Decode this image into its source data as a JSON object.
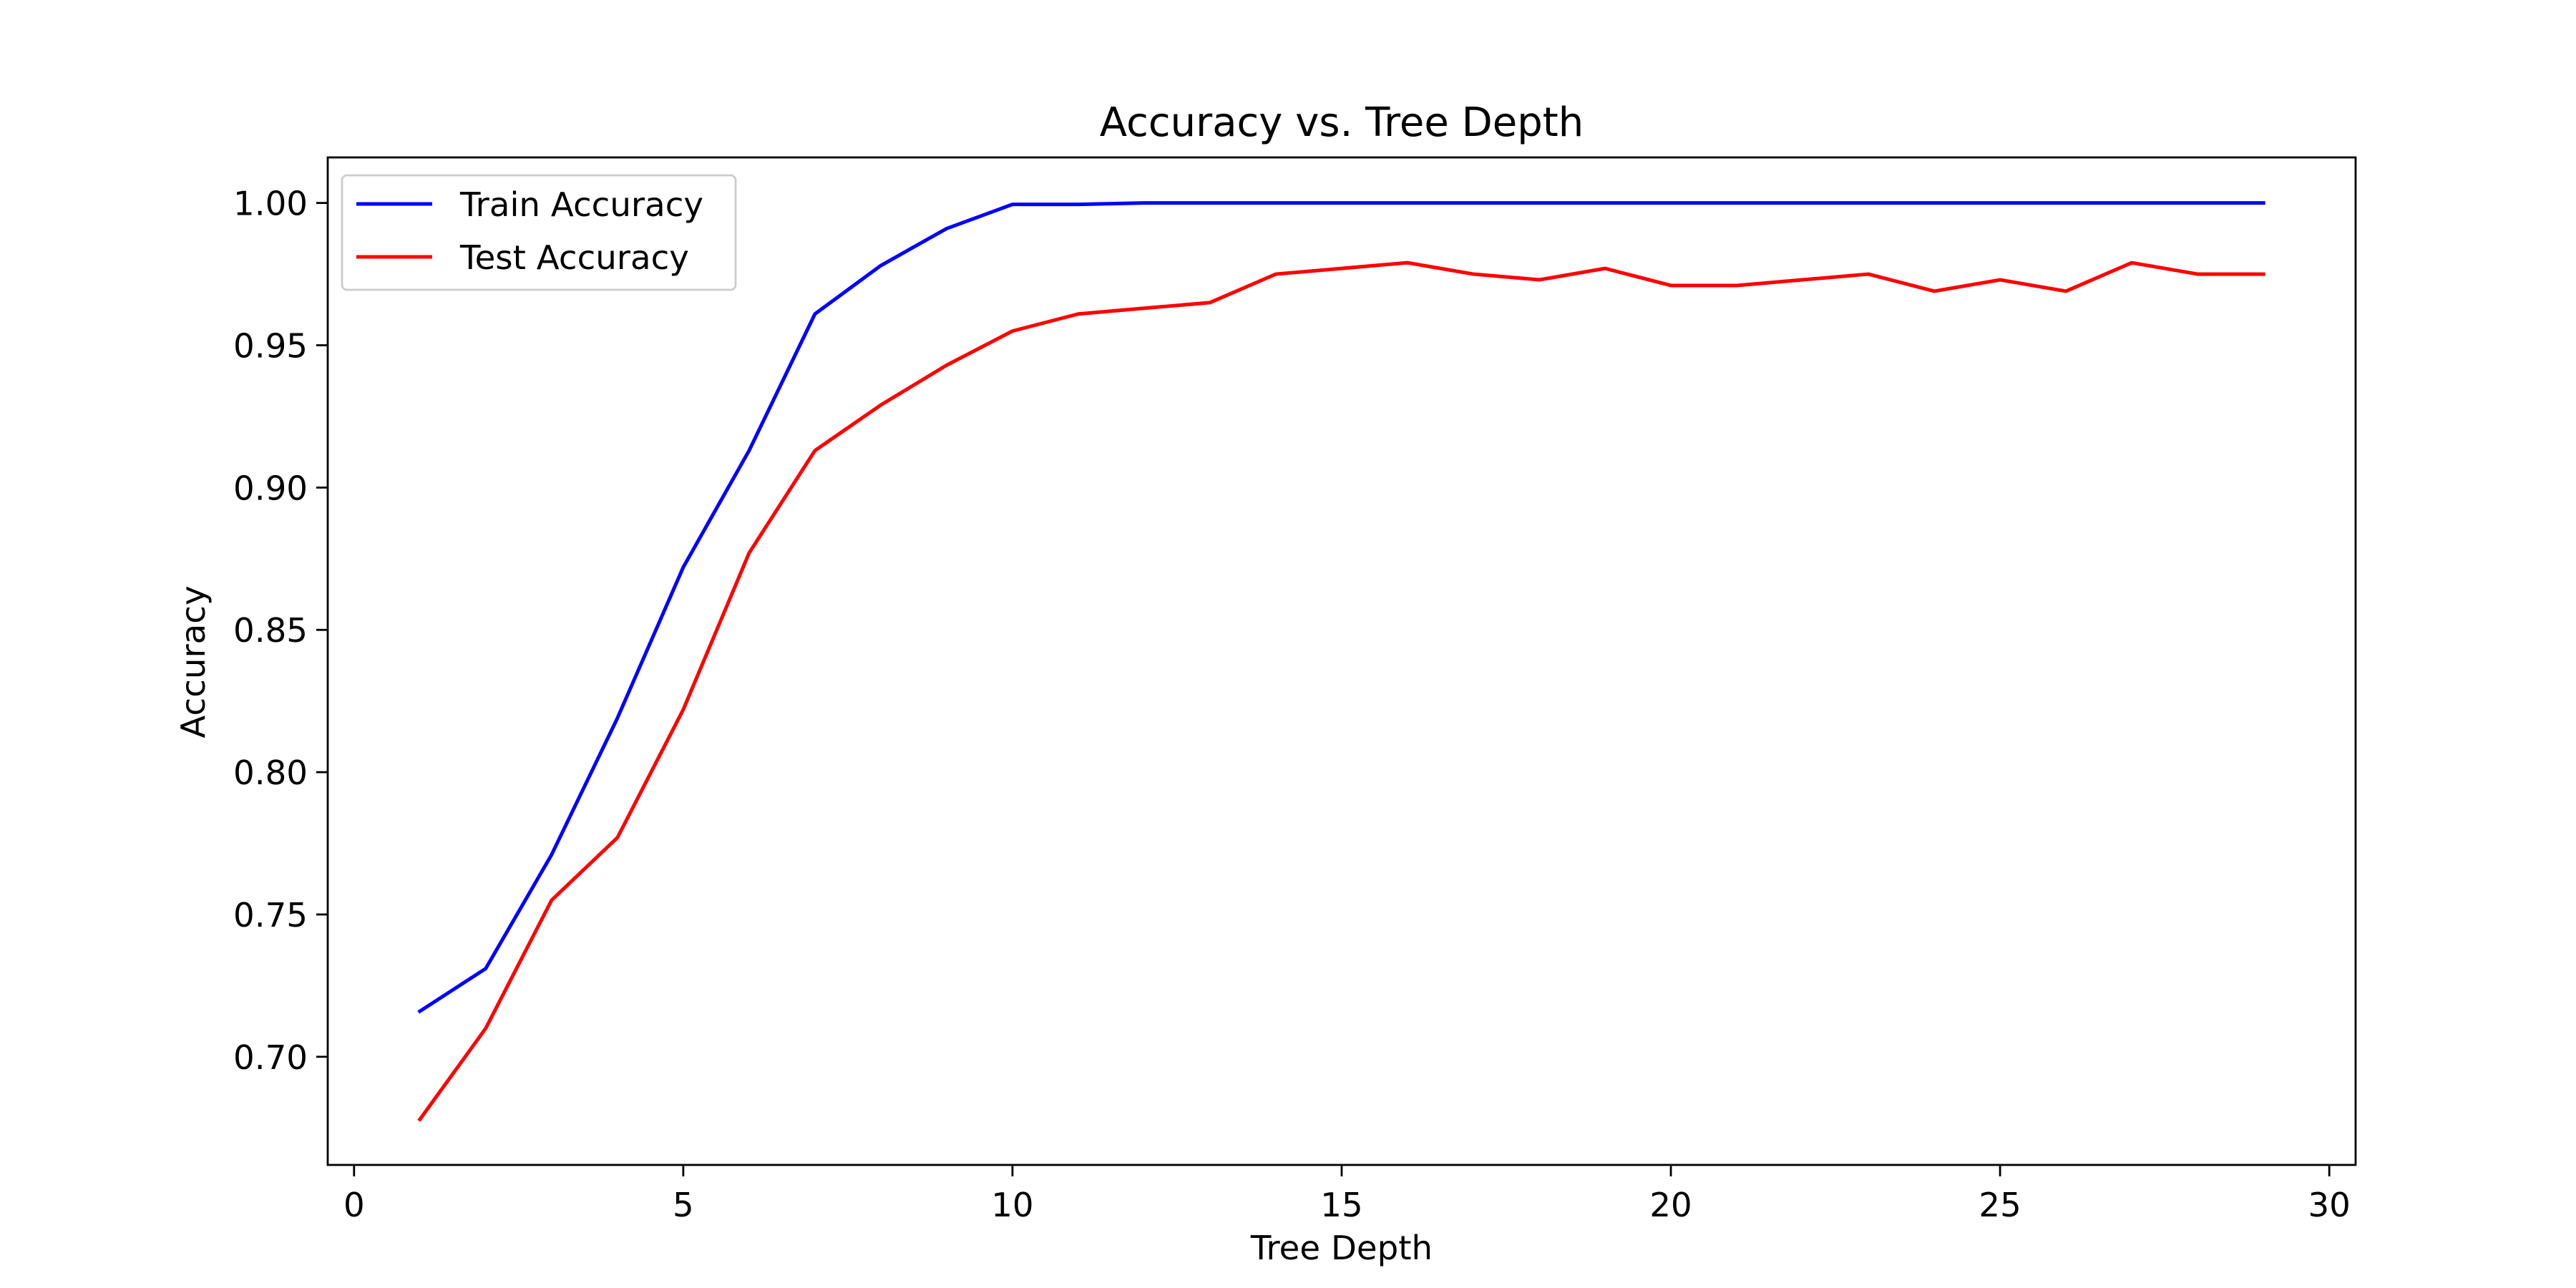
{
  "chart_data": {
    "type": "line",
    "title": "Accuracy vs. Tree Depth",
    "xlabel": "Tree Depth",
    "ylabel": "Accuracy",
    "xlim": [
      -0.4,
      30.4
    ],
    "ylim": [
      0.662,
      1.016
    ],
    "xticks": [
      0,
      5,
      10,
      15,
      20,
      25,
      30
    ],
    "xtick_labels": [
      "0",
      "5",
      "10",
      "15",
      "20",
      "25",
      "30"
    ],
    "yticks": [
      0.7,
      0.75,
      0.8,
      0.85,
      0.9,
      0.95,
      1.0
    ],
    "ytick_labels": [
      "0.70",
      "0.75",
      "0.80",
      "0.85",
      "0.90",
      "0.95",
      "1.00"
    ],
    "grid": false,
    "legend_position": "upper-left",
    "x": [
      1,
      2,
      3,
      4,
      5,
      6,
      7,
      8,
      9,
      10,
      11,
      12,
      13,
      14,
      15,
      16,
      17,
      18,
      19,
      20,
      21,
      22,
      23,
      24,
      25,
      26,
      27,
      28,
      29
    ],
    "series": [
      {
        "name": "Train Accuracy",
        "color": "#0000ff",
        "values": [
          0.716,
          0.731,
          0.771,
          0.819,
          0.872,
          0.913,
          0.961,
          0.978,
          0.991,
          0.9995,
          0.9995,
          1.0,
          1.0,
          1.0,
          1.0,
          1.0,
          1.0,
          1.0,
          1.0,
          1.0,
          1.0,
          1.0,
          1.0,
          1.0,
          1.0,
          1.0,
          1.0,
          1.0,
          1.0
        ]
      },
      {
        "name": "Test Accuracy",
        "color": "#ff0000",
        "values": [
          0.678,
          0.71,
          0.755,
          0.777,
          0.822,
          0.877,
          0.913,
          0.929,
          0.943,
          0.955,
          0.961,
          0.963,
          0.965,
          0.975,
          0.977,
          0.979,
          0.975,
          0.973,
          0.977,
          0.971,
          0.971,
          0.973,
          0.975,
          0.969,
          0.973,
          0.969,
          0.979,
          0.975,
          0.975
        ]
      }
    ]
  }
}
